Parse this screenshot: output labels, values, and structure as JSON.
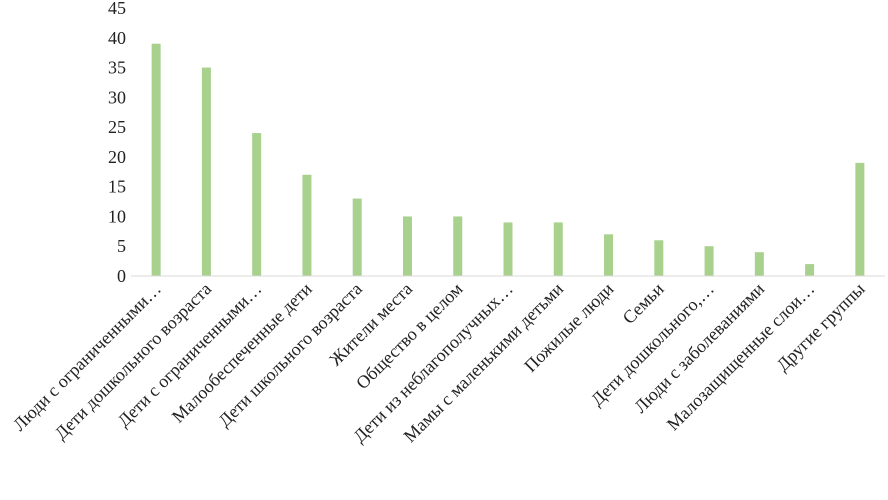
{
  "chart_data": {
    "type": "bar",
    "title": "",
    "xlabel": "",
    "ylabel": "",
    "ylim": [
      0,
      45
    ],
    "yticks": [
      0,
      5,
      10,
      15,
      20,
      25,
      30,
      35,
      40,
      45
    ],
    "grid": false,
    "legend": "none",
    "bar_color": "#a9d18e",
    "categories": [
      "Люди с ограниченными…",
      "Дети дошкольного возраста",
      "Дети с ограниченными…",
      "Малообеспеченные дети",
      "Дети школьного возраста",
      "Жители места",
      "Общество в целом",
      "Дети из неблагополучных…",
      "Мамы с маленькими детьми",
      "Пожилые люди",
      "Семьи",
      "Дети дошкольного,…",
      "Люди с заболеваниями",
      "Малозащищенные слои…",
      "Другие группы"
    ],
    "values": [
      39,
      35,
      24,
      17,
      13,
      10,
      10,
      9,
      9,
      7,
      6,
      5,
      4,
      2,
      19
    ]
  }
}
